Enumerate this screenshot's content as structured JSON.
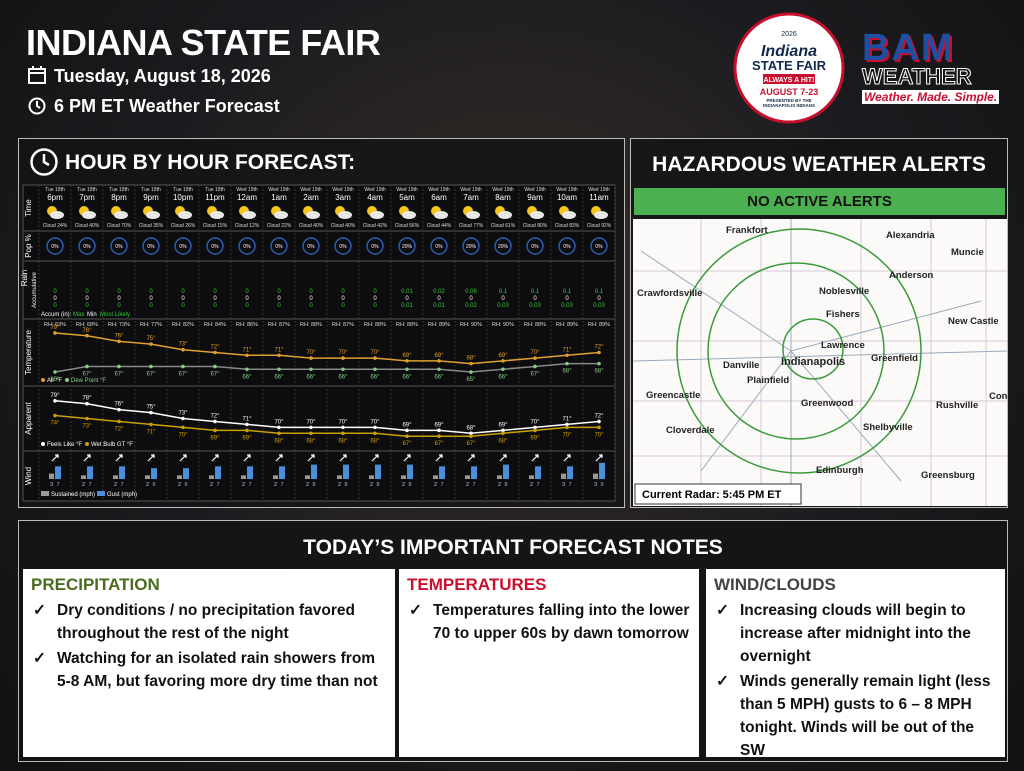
{
  "header": {
    "title": "INDIANA STATE FAIR",
    "date": "Tuesday, August 18, 2026",
    "subtitle": "6 PM ET Weather Forecast"
  },
  "fair_logo": {
    "year": "2026",
    "name": "Indiana",
    "name2": "STATE FAIR",
    "tagline": "ALWAYS A HIT!",
    "dates": "AUGUST 7-23",
    "presented": "PRESENTED BY THE INDIANAPOLIS INDIANS"
  },
  "bam_logo": {
    "name": "BAM",
    "sub": "WEATHER",
    "tagline": "Weather. Made. Simple."
  },
  "hourly": {
    "title": "HOUR BY HOUR FORECAST:",
    "row_labels": {
      "time": "Time",
      "pop": "Pop %",
      "rain": "Rain",
      "rain_sub": "Accumulative",
      "temperature": "Temperature",
      "apparent": "Apparent",
      "wind": "Wind"
    },
    "hours": [
      {
        "day": "Tue 18th",
        "time": "6pm",
        "cloud": "Cloud 24%"
      },
      {
        "day": "Tue 18th",
        "time": "7pm",
        "cloud": "Cloud 40%"
      },
      {
        "day": "Tue 18th",
        "time": "8pm",
        "cloud": "Cloud 70%"
      },
      {
        "day": "Tue 18th",
        "time": "9pm",
        "cloud": "Cloud 35%"
      },
      {
        "day": "Tue 18th",
        "time": "10pm",
        "cloud": "Cloud 26%"
      },
      {
        "day": "Tue 18th",
        "time": "11pm",
        "cloud": "Cloud 15%"
      },
      {
        "day": "Wed 19th",
        "time": "12am",
        "cloud": "Cloud 12%"
      },
      {
        "day": "Wed 19th",
        "time": "1am",
        "cloud": "Cloud 22%"
      },
      {
        "day": "Wed 19th",
        "time": "2am",
        "cloud": "Cloud 40%"
      },
      {
        "day": "Wed 19th",
        "time": "3am",
        "cloud": "Cloud 40%"
      },
      {
        "day": "Wed 19th",
        "time": "4am",
        "cloud": "Cloud 42%"
      },
      {
        "day": "Wed 19th",
        "time": "5am",
        "cloud": "Cloud 56%"
      },
      {
        "day": "Wed 19th",
        "time": "6am",
        "cloud": "Cloud 44%"
      },
      {
        "day": "Wed 19th",
        "time": "7am",
        "cloud": "Cloud 77%"
      },
      {
        "day": "Wed 19th",
        "time": "8am",
        "cloud": "Cloud 61%"
      },
      {
        "day": "Wed 19th",
        "time": "9am",
        "cloud": "Cloud 80%"
      },
      {
        "day": "Wed 19th",
        "time": "10am",
        "cloud": "Cloud 83%"
      },
      {
        "day": "Wed 19th",
        "time": "11am",
        "cloud": "Cloud 92%"
      }
    ],
    "pop": [
      "0%",
      "0%",
      "0%",
      "0%",
      "0%",
      "0%",
      "0%",
      "0%",
      "0%",
      "0%",
      "0%",
      "20%",
      "0%",
      "20%",
      "20%",
      "0%",
      "0%",
      "0%"
    ],
    "rain_max": [
      "0",
      "0",
      "0",
      "0",
      "0",
      "0",
      "0",
      "0",
      "0",
      "0",
      "0",
      "0.01",
      "0.02",
      "0.06",
      "0.1",
      "0.1",
      "0.1",
      "0.1"
    ],
    "rain_min": [
      "0",
      "0",
      "0",
      "0",
      "0",
      "0",
      "0",
      "0",
      "0",
      "0",
      "0",
      "0",
      "0",
      "0",
      "0",
      "0",
      "0",
      "0"
    ],
    "rain_likely": [
      "0",
      "0",
      "0",
      "0",
      "0",
      "0",
      "0",
      "0",
      "0",
      "0",
      "0",
      "0.01",
      "0.01",
      "0.02",
      "0.03",
      "0.03",
      "0.03",
      "0.03"
    ],
    "rain_legend": {
      "accum": "Accum (in):",
      "max": "Max",
      "min": "Min",
      "likely": "Most Likely"
    },
    "rh": [
      "RH: 63%",
      "RH: 68%",
      "RH: 73%",
      "RH: 77%",
      "RH: 82%",
      "RH: 84%",
      "RH: 86%",
      "RH: 87%",
      "RH: 88%",
      "RH: 87%",
      "RH: 88%",
      "RH: 88%",
      "RH: 89%",
      "RH: 90%",
      "RH: 90%",
      "RH: 88%",
      "RH: 89%",
      "RH: 89%"
    ],
    "air_temp": {
      "values": [
        79,
        78,
        76,
        75,
        73,
        72,
        71,
        71,
        70,
        70,
        70,
        69,
        69,
        68,
        69,
        70,
        71,
        72
      ],
      "value_labels": [
        "79°",
        "78°",
        "76°",
        "75°",
        "73°",
        "72°",
        "71°",
        "71°",
        "70°",
        "70°",
        "70°",
        "69°",
        "69°",
        "68°",
        "69°",
        "70°",
        "71°",
        "72°"
      ]
    },
    "dew_point": {
      "values": [
        65,
        67,
        67,
        67,
        67,
        67,
        66,
        66,
        66,
        66,
        66,
        66,
        66,
        65,
        66,
        67,
        68,
        68
      ],
      "value_labels": [
        "65°",
        "67°",
        "67°",
        "67°",
        "67°",
        "67°",
        "66°",
        "66°",
        "66°",
        "66°",
        "66°",
        "66°",
        "66°",
        "65°",
        "66°",
        "67°",
        "68°",
        "68°"
      ]
    },
    "temp_legend": {
      "air": "Air °F",
      "dew": "Dew Point °F"
    },
    "feels_like": {
      "values": [
        79,
        78,
        76,
        75,
        73,
        72,
        71,
        70,
        70,
        70,
        70,
        69,
        69,
        68,
        69,
        70,
        71,
        72
      ],
      "value_labels": [
        "79°",
        "78°",
        "76°",
        "75°",
        "73°",
        "72°",
        "71°",
        "70°",
        "70°",
        "70°",
        "70°",
        "69°",
        "69°",
        "68°",
        "69°",
        "70°",
        "71°",
        "72°"
      ]
    },
    "wet_bulb": {
      "values": [
        74,
        73,
        72,
        71,
        70,
        69,
        69,
        68,
        68,
        68,
        68,
        67,
        67,
        67,
        68,
        69,
        70,
        70
      ],
      "value_labels": [
        "74°",
        "73°",
        "72°",
        "71°",
        "70°",
        "69°",
        "69°",
        "68°",
        "68°",
        "68°",
        "68°",
        "67°",
        "67°",
        "67°",
        "68°",
        "69°",
        "70°",
        "70°"
      ]
    },
    "apparent_legend": {
      "feels": "Feels Like °F",
      "wet": "Wet Bulb GT °F"
    },
    "wind_sustained": [
      3,
      2,
      2,
      2,
      2,
      2,
      2,
      2,
      2,
      2,
      2,
      2,
      2,
      2,
      2,
      2,
      3,
      3
    ],
    "wind_gust": [
      7,
      7,
      7,
      6,
      6,
      7,
      7,
      7,
      8,
      8,
      8,
      8,
      7,
      7,
      8,
      7,
      7,
      9
    ],
    "wind_legend": {
      "sustained": "Sustained (mph)",
      "gust": "Gust (mph)"
    }
  },
  "alerts": {
    "title": "HAZARDOUS WEATHER ALERTS",
    "status": "NO ACTIVE ALERTS",
    "radar": "Current Radar: 5:45 PM ET",
    "cities": [
      "Frankfort",
      "Alexandria",
      "Muncie",
      "Anderson",
      "Crawfordsville",
      "Noblesville",
      "Fishers",
      "New Castle",
      "Lawrence",
      "Greenfield",
      "Danville",
      "Indianapolis",
      "Plainfield",
      "Greencastle",
      "Greenwood",
      "Rushville",
      "Con",
      "Cloverdale",
      "Shelbyville",
      "Edinburgh",
      "Greensburg"
    ]
  },
  "notes": {
    "title": "TODAY’S IMPORTANT FORECAST NOTES",
    "columns": [
      {
        "heading": "PRECIPITATION",
        "items": [
          "Dry conditions / no precipitation favored throughout the rest of the night",
          "Watching for an isolated rain showers from 5-8 AM, but favoring more dry time than not"
        ]
      },
      {
        "heading": "TEMPERATURES",
        "items": [
          "Temperatures falling into the lower 70 to upper 60s by dawn tomorrow"
        ]
      },
      {
        "heading": "WIND/CLOUDS",
        "items": [
          "Increasing clouds will begin to increase after midnight into the overnight",
          "Winds generally remain light (less than 5 MPH) gusts to 6 – 8 MPH tonight. Winds will be out of the SW"
        ]
      }
    ]
  }
}
